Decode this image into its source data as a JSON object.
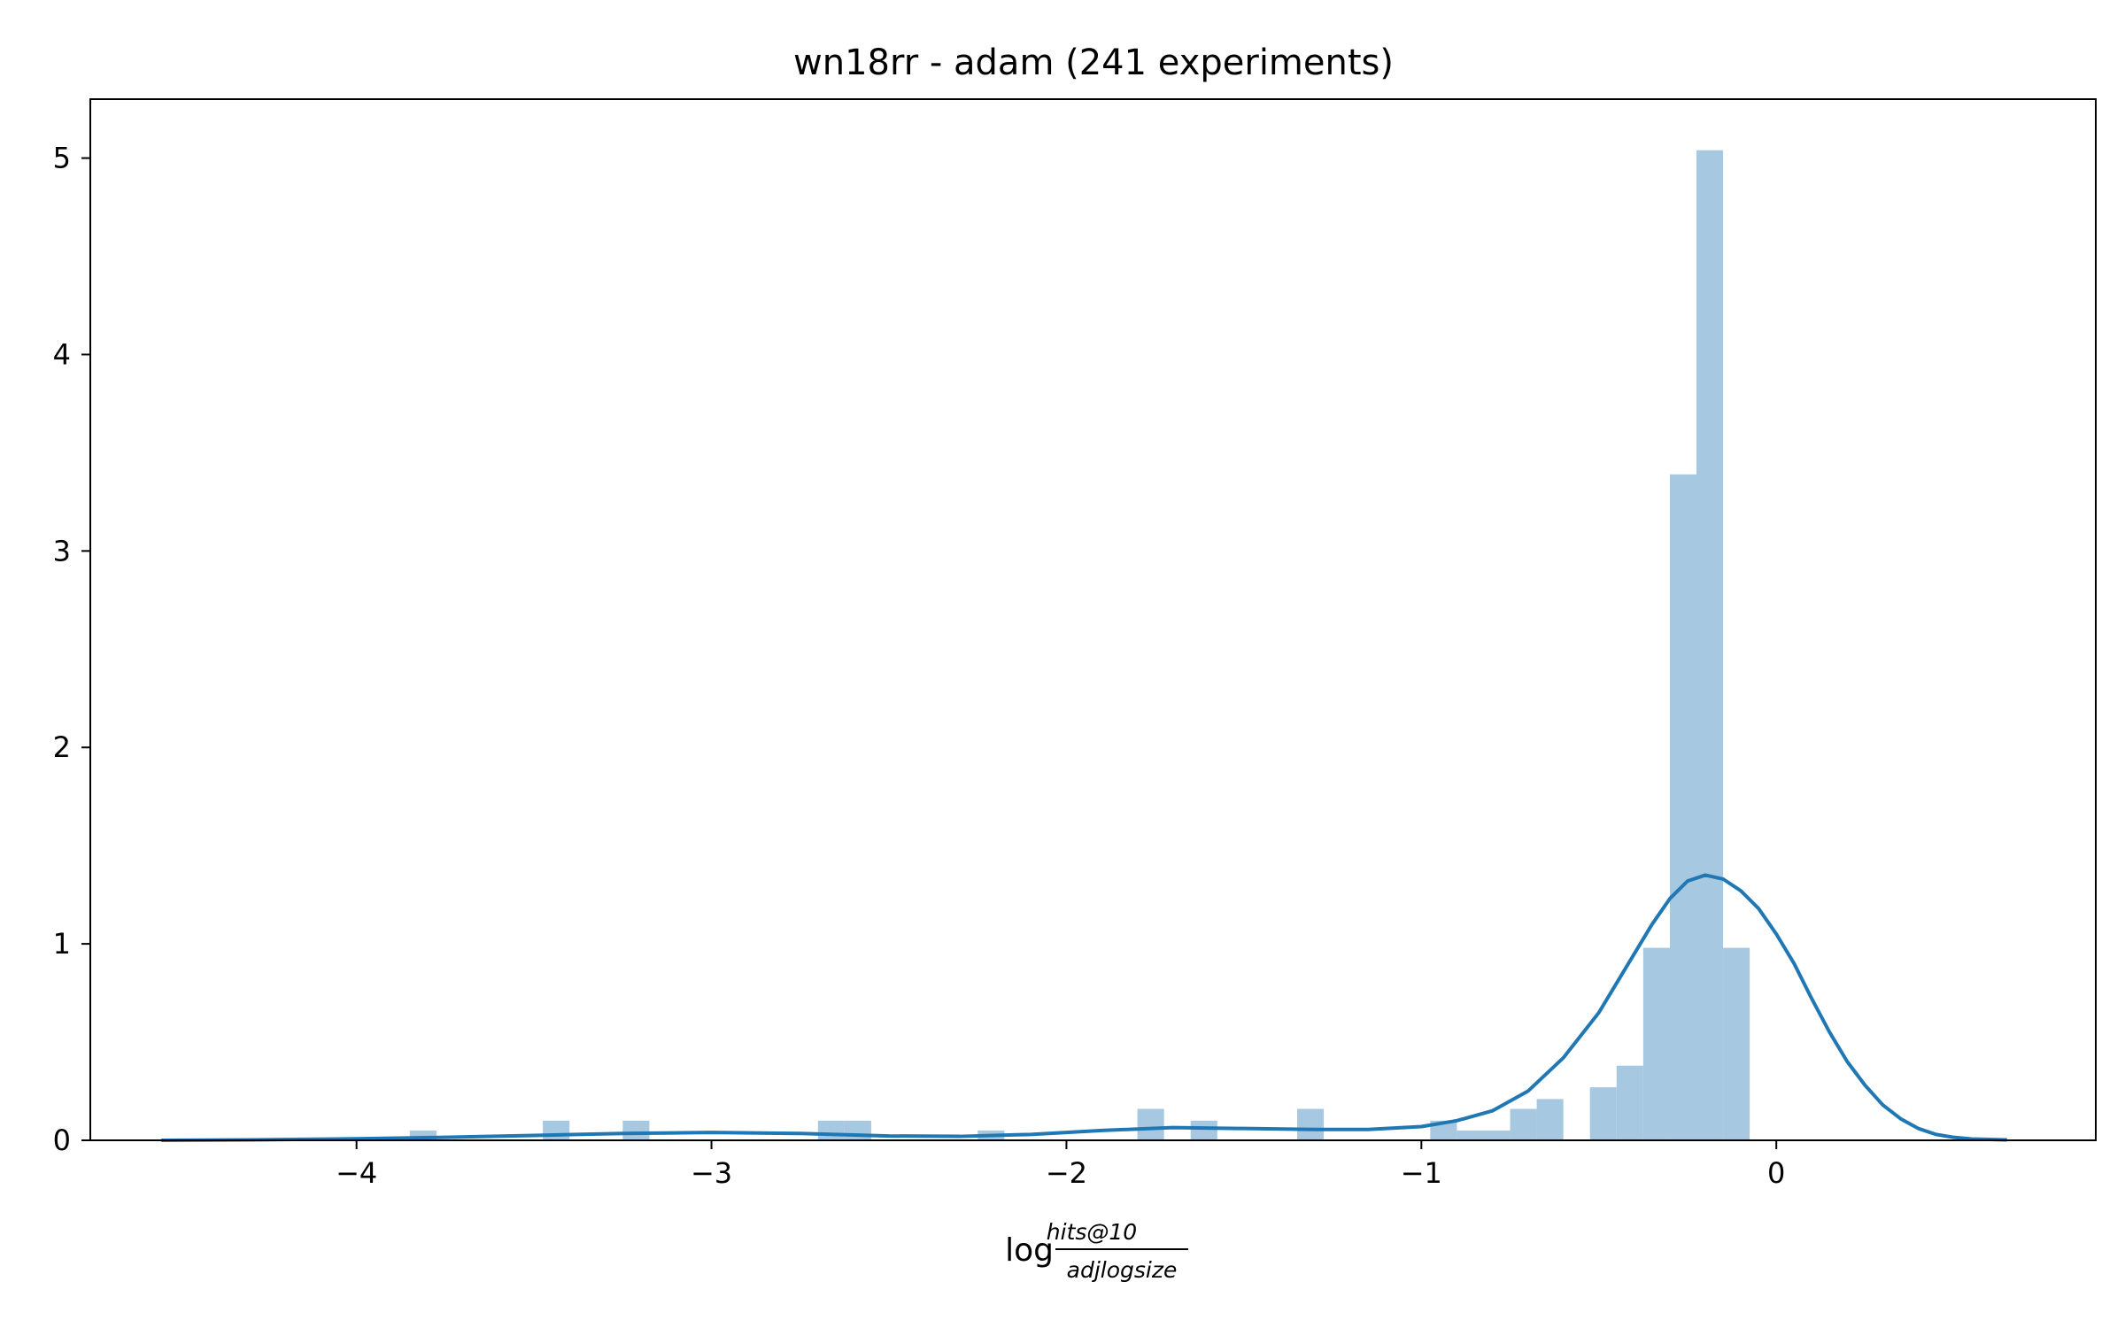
{
  "chart_data": {
    "type": "bar",
    "title": "wn18rr - adam (241 experiments)",
    "xlabel": {
      "prefix": "log",
      "numerator": "hits@10",
      "denominator": "adjlogsize"
    },
    "ylabel": "",
    "xlim": [
      -4.75,
      0.9
    ],
    "ylim": [
      0,
      5.3
    ],
    "xticks": [
      -4,
      -3,
      -2,
      -1,
      0
    ],
    "xtick_labels": [
      "−4",
      "−3",
      "−2",
      "−1",
      "0"
    ],
    "yticks": [
      0,
      1,
      2,
      3,
      4,
      5
    ],
    "ytick_labels": [
      "0",
      "1",
      "2",
      "3",
      "4",
      "5"
    ],
    "grid": false,
    "colors": {
      "histogram": "#a6c8e0",
      "kde": "#1f77b4",
      "axes": "#000000"
    },
    "histogram": {
      "bin_width": 0.075,
      "bins": [
        {
          "x0": -3.85,
          "height": 0.05
        },
        {
          "x0": -3.475,
          "height": 0.1
        },
        {
          "x0": -3.25,
          "height": 0.1
        },
        {
          "x0": -2.7,
          "height": 0.1
        },
        {
          "x0": -2.625,
          "height": 0.1
        },
        {
          "x0": -2.25,
          "height": 0.05
        },
        {
          "x0": -1.8,
          "height": 0.16
        },
        {
          "x0": -1.65,
          "height": 0.1
        },
        {
          "x0": -1.35,
          "height": 0.16
        },
        {
          "x0": -0.975,
          "height": 0.1
        },
        {
          "x0": -0.9,
          "height": 0.05
        },
        {
          "x0": -0.825,
          "height": 0.05
        },
        {
          "x0": -0.75,
          "height": 0.16
        },
        {
          "x0": -0.675,
          "height": 0.21
        },
        {
          "x0": -0.525,
          "height": 0.27
        },
        {
          "x0": -0.45,
          "height": 0.38
        },
        {
          "x0": -0.375,
          "height": 0.98
        },
        {
          "x0": -0.3,
          "height": 3.39
        },
        {
          "x0": -0.225,
          "height": 5.04
        },
        {
          "x0": -0.15,
          "height": 0.98
        }
      ]
    },
    "kde": {
      "x": [
        -4.55,
        -4.3,
        -4.0,
        -3.75,
        -3.5,
        -3.25,
        -3.0,
        -2.75,
        -2.5,
        -2.3,
        -2.1,
        -1.9,
        -1.7,
        -1.5,
        -1.3,
        -1.15,
        -1.0,
        -0.9,
        -0.8,
        -0.7,
        -0.6,
        -0.5,
        -0.4,
        -0.35,
        -0.3,
        -0.25,
        -0.2,
        -0.15,
        -0.1,
        -0.05,
        0.0,
        0.05,
        0.1,
        0.15,
        0.2,
        0.25,
        0.3,
        0.35,
        0.4,
        0.45,
        0.5,
        0.55,
        0.65
      ],
      "y": [
        0.0,
        0.002,
        0.008,
        0.015,
        0.025,
        0.035,
        0.04,
        0.035,
        0.022,
        0.02,
        0.03,
        0.05,
        0.065,
        0.06,
        0.055,
        0.055,
        0.07,
        0.1,
        0.15,
        0.25,
        0.42,
        0.65,
        0.95,
        1.1,
        1.23,
        1.32,
        1.35,
        1.33,
        1.27,
        1.18,
        1.05,
        0.9,
        0.72,
        0.55,
        0.4,
        0.28,
        0.18,
        0.11,
        0.06,
        0.03,
        0.015,
        0.007,
        0.002
      ]
    }
  }
}
